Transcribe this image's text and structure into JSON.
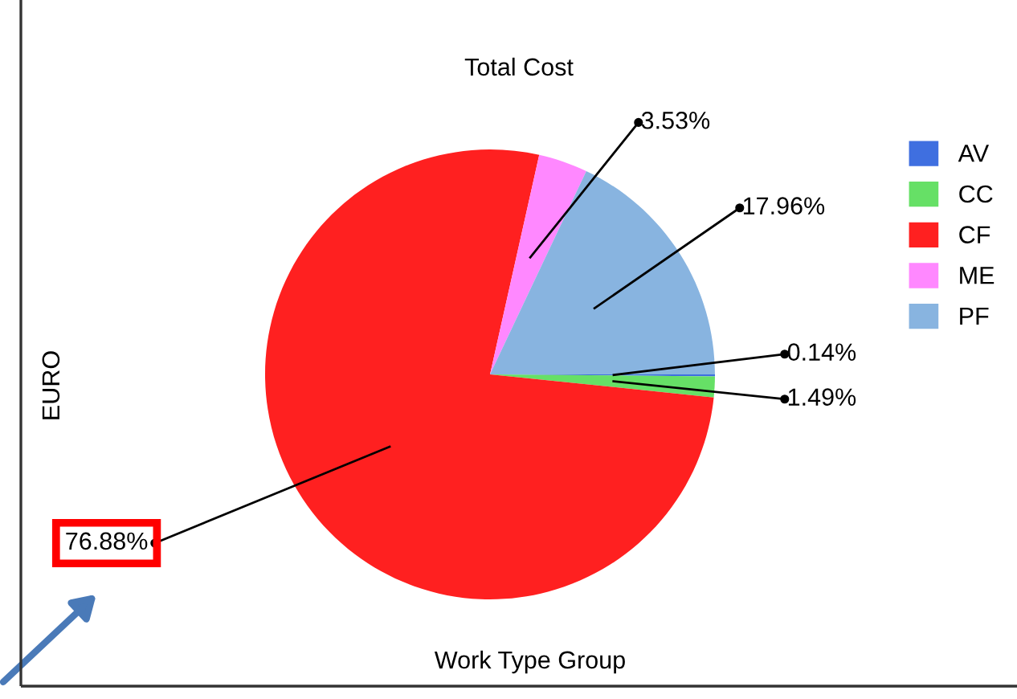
{
  "chart_data": {
    "type": "pie",
    "title": "Total Cost",
    "xlabel": "Work Type Group",
    "ylabel": "EURO",
    "categories": [
      "AV",
      "CC",
      "CF",
      "ME",
      "PF"
    ],
    "values": [
      0.14,
      1.49,
      76.88,
      3.53,
      17.96
    ],
    "colors": [
      "#3f6fe0",
      "#66e066",
      "#ff2020",
      "#ff88ff",
      "#88b4e0"
    ],
    "value_labels": [
      "0.14%",
      "1.49%",
      "76.88%",
      "3.53%",
      "17.96%"
    ],
    "legend": "right"
  }
}
